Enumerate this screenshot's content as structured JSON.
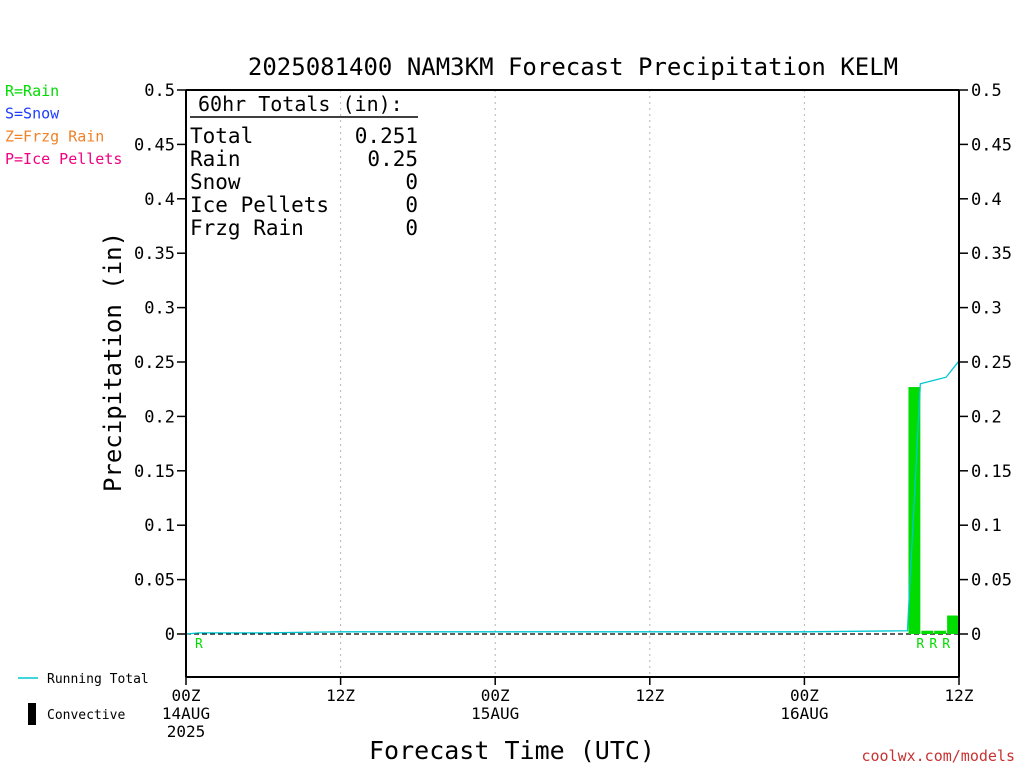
{
  "chart_data": {
    "type": "bar",
    "title": "2025081400 NAM3KM Forecast Precipitation KELM",
    "xlabel": "Forecast Time (UTC)",
    "ylabel": "Precipitation (in)",
    "ylim": [
      0,
      0.5
    ],
    "y_ticks": [
      0,
      0.05,
      0.1,
      0.15,
      0.2,
      0.25,
      0.3,
      0.35,
      0.4,
      0.45,
      0.5
    ],
    "y_tick_labels": [
      "0",
      "0.05",
      "0.1",
      "0.15",
      "0.2",
      "0.25",
      "0.3",
      "0.35",
      "0.4",
      "0.45",
      "0.5"
    ],
    "x_unit": "forecast hour",
    "xlim": [
      0,
      60
    ],
    "x_ticks": [
      {
        "hour": 0,
        "lines": [
          "00Z",
          "14AUG",
          "2025"
        ]
      },
      {
        "hour": 12,
        "lines": [
          "12Z"
        ]
      },
      {
        "hour": 24,
        "lines": [
          "00Z",
          "15AUG"
        ]
      },
      {
        "hour": 36,
        "lines": [
          "12Z"
        ]
      },
      {
        "hour": 48,
        "lines": [
          "00Z",
          "16AUG"
        ]
      },
      {
        "hour": 60,
        "lines": [
          "12Z"
        ]
      }
    ],
    "grid": "vertical dotted at 12Z and 00Z ticks",
    "totals_box": {
      "heading": "60hr Totals (in):",
      "rows": [
        {
          "label": "Total",
          "value": "0.251"
        },
        {
          "label": "Rain",
          "value": "0.25"
        },
        {
          "label": "Snow",
          "value": "0"
        },
        {
          "label": "Ice Pellets",
          "value": "0"
        },
        {
          "label": "Frzg Rain",
          "value": "0"
        }
      ]
    },
    "ptype_legend": [
      {
        "text": "R=Rain",
        "color": "#00dc00"
      },
      {
        "text": "S=Snow",
        "color": "#1e3cff"
      },
      {
        "text": "Z=Frzg Rain",
        "color": "#f08228"
      },
      {
        "text": "P=Ice Pellets",
        "color": "#f00082"
      }
    ],
    "series_legend": [
      {
        "text": "Running Total",
        "kind": "line",
        "color": "#00c8d2"
      },
      {
        "text": "Convective",
        "kind": "bar",
        "color": "#000000"
      }
    ],
    "bars": [
      {
        "hour": 57,
        "value": 0.227,
        "type": "R"
      },
      {
        "hour": 58,
        "value": 0.003,
        "type": "R"
      },
      {
        "hour": 59,
        "value": 0.003,
        "type": "R"
      },
      {
        "hour": 60,
        "value": 0.017,
        "type": "R"
      }
    ],
    "ptype_markers": [
      {
        "hour": 1,
        "label": "R"
      },
      {
        "hour": 57,
        "label": "R"
      },
      {
        "hour": 58,
        "label": "R"
      },
      {
        "hour": 59,
        "label": "R"
      }
    ],
    "running_total": {
      "hours": [
        0,
        1,
        6,
        12,
        24,
        36,
        48,
        56,
        57,
        58,
        59,
        60
      ],
      "values": [
        0,
        0.001,
        0.001,
        0.002,
        0.002,
        0.002,
        0.002,
        0.003,
        0.23,
        0.233,
        0.236,
        0.251
      ]
    },
    "convective": [],
    "colors": {
      "rain": "#00dc00",
      "running_total": "#00c8d2",
      "convective": "#000000",
      "credit": "#c83232"
    },
    "credit": "coolwx.com/models"
  }
}
